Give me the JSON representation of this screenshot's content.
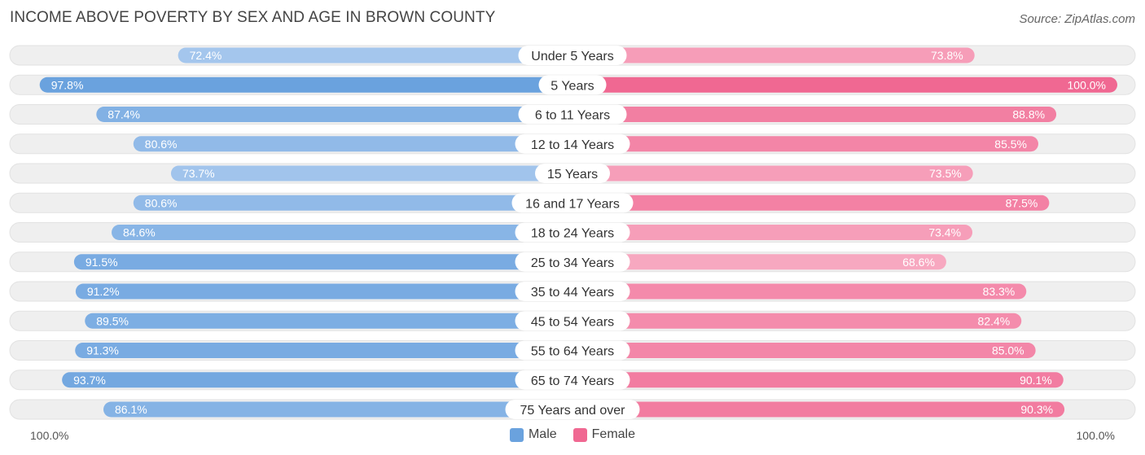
{
  "header": {
    "title": "INCOME ABOVE POVERTY BY SEX AND AGE IN BROWN COUNTY",
    "source": "Source: ZipAtlas.com"
  },
  "axis": {
    "left_label": "100.0%",
    "right_label": "100.0%"
  },
  "legend": {
    "male_label": "Male",
    "female_label": "Female"
  },
  "colors": {
    "male_strong": "#6aa2de",
    "male_light": "#a9c9ee",
    "female_strong": "#f06892",
    "female_light": "#f7a9c1",
    "track": "#efefef"
  },
  "chart_data": {
    "type": "bar",
    "orientation": "horizontal-diverging",
    "title": "INCOME ABOVE POVERTY BY SEX AND AGE IN BROWN COUNTY",
    "categories": [
      "Under 5 Years",
      "5 Years",
      "6 to 11 Years",
      "12 to 14 Years",
      "15 Years",
      "16 and 17 Years",
      "18 to 24 Years",
      "25 to 34 Years",
      "35 to 44 Years",
      "45 to 54 Years",
      "55 to 64 Years",
      "65 to 74 Years",
      "75 Years and over"
    ],
    "series": [
      {
        "name": "Male",
        "values": [
          72.4,
          97.8,
          87.4,
          80.6,
          73.7,
          80.6,
          84.6,
          91.5,
          91.2,
          89.5,
          91.3,
          93.7,
          86.1
        ],
        "labels": [
          "72.4%",
          "97.8%",
          "87.4%",
          "80.6%",
          "73.7%",
          "80.6%",
          "84.6%",
          "91.5%",
          "91.2%",
          "89.5%",
          "91.3%",
          "93.7%",
          "86.1%"
        ]
      },
      {
        "name": "Female",
        "values": [
          73.8,
          100.0,
          88.8,
          85.5,
          73.5,
          87.5,
          73.4,
          68.6,
          83.3,
          82.4,
          85.0,
          90.1,
          90.3
        ],
        "labels": [
          "73.8%",
          "100.0%",
          "88.8%",
          "85.5%",
          "73.5%",
          "87.5%",
          "73.4%",
          "68.6%",
          "83.3%",
          "82.4%",
          "85.0%",
          "90.1%",
          "90.3%"
        ]
      }
    ],
    "xlim": [
      0,
      100
    ],
    "xlabel_left": "100.0%",
    "xlabel_right": "100.0%",
    "legend_position": "bottom-center"
  }
}
